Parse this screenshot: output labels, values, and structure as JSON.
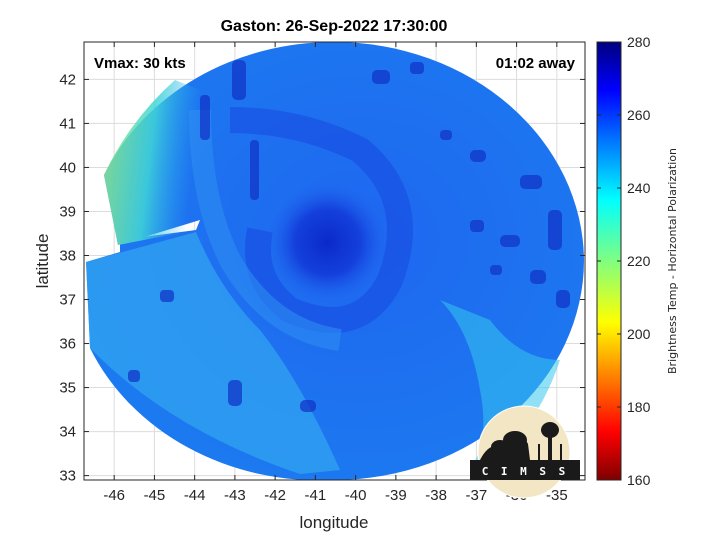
{
  "chart_data": {
    "type": "heatmap",
    "title": "Gaston: 26-Sep-2022 17:30:00",
    "xlabel": "longitude",
    "ylabel": "latitude",
    "xlim": [
      -46.75,
      -34.3
    ],
    "ylim": [
      32.9,
      42.85
    ],
    "x_ticks": [
      -46,
      -45,
      -44,
      -43,
      -42,
      -41,
      -40,
      -39,
      -38,
      -37,
      -36,
      -35
    ],
    "y_ticks": [
      33,
      34,
      35,
      36,
      37,
      38,
      39,
      40,
      41,
      42
    ],
    "grid": true,
    "annotations": {
      "vmax": "Vmax: 30 kts",
      "time_away": "01:02 away"
    },
    "storm_center": {
      "lon": -40.7,
      "lat": 38.3
    },
    "colorbar": {
      "label": "Brightness Temp - Horizontal Polarization",
      "min": 160,
      "max": 280,
      "ticks": [
        160,
        180,
        200,
        220,
        240,
        260,
        280
      ],
      "colormap": "jet"
    }
  },
  "logo": {
    "text": "C I M S S",
    "name": "cimss-logo"
  },
  "colors": {
    "background_field": "#1e6ef0",
    "eye_deep": "#0c2ed0",
    "band_cyan": "#2bd0f0",
    "warm_green": "#8ee880"
  }
}
